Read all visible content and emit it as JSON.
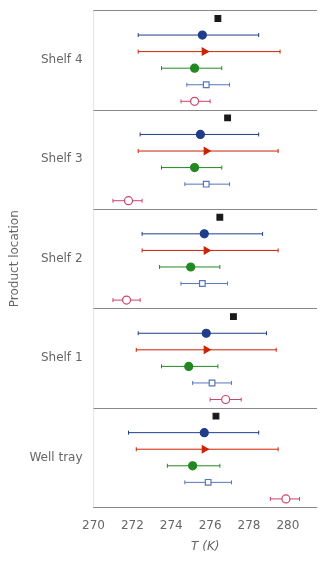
{
  "chart_data": {
    "type": "scatter",
    "categories": [
      "Well tray",
      "Shelf 1",
      "Shelf 2",
      "Shelf 3",
      "Shelf 4"
    ],
    "xlabel": "T (K)",
    "ylabel": "Product location",
    "xlim": [
      270,
      281.5
    ],
    "xticks": [
      270,
      272,
      274,
      276,
      278,
      280
    ],
    "grid": false,
    "series": [
      {
        "color": "#1a1a1a",
        "marker": "square",
        "values": [
          276.3,
          277.2,
          276.5,
          276.9,
          276.4
        ]
      },
      {
        "color": "#1f3d8a",
        "marker": "circle",
        "values": [
          275.7,
          275.8,
          275.7,
          275.5,
          275.6
        ],
        "low": [
          271.8,
          272.3,
          272.5,
          272.4,
          272.3
        ],
        "high": [
          278.5,
          278.9,
          278.7,
          278.5,
          278.5
        ]
      },
      {
        "color": "#cc2200",
        "marker": "triangle-right",
        "values": [
          275.7,
          275.8,
          275.8,
          275.8,
          275.7
        ],
        "low": [
          272.2,
          272.2,
          272.5,
          272.3,
          272.3
        ],
        "high": [
          279.5,
          279.4,
          279.5,
          279.5,
          279.6
        ]
      },
      {
        "color": "#228822",
        "marker": "circle",
        "values": [
          275.1,
          274.9,
          275.0,
          275.2,
          275.2
        ],
        "low": [
          273.8,
          273.5,
          273.4,
          273.5,
          273.5
        ],
        "high": [
          276.5,
          276.4,
          276.5,
          276.6,
          276.6
        ]
      },
      {
        "color": "#5577bb",
        "marker": "open-square",
        "values": [
          275.9,
          276.1,
          275.6,
          275.8,
          275.8
        ],
        "low": [
          274.7,
          275.1,
          274.5,
          274.7,
          274.8
        ],
        "high": [
          277.1,
          277.1,
          276.9,
          277.0,
          277.0
        ]
      },
      {
        "color": "#cc4466",
        "marker": "open-circle",
        "values": [
          279.9,
          276.8,
          271.7,
          271.8,
          275.2
        ],
        "low": [
          279.1,
          276.0,
          271.0,
          271.0,
          274.5
        ],
        "high": [
          280.6,
          277.6,
          272.4,
          272.5,
          276.0
        ]
      }
    ]
  }
}
